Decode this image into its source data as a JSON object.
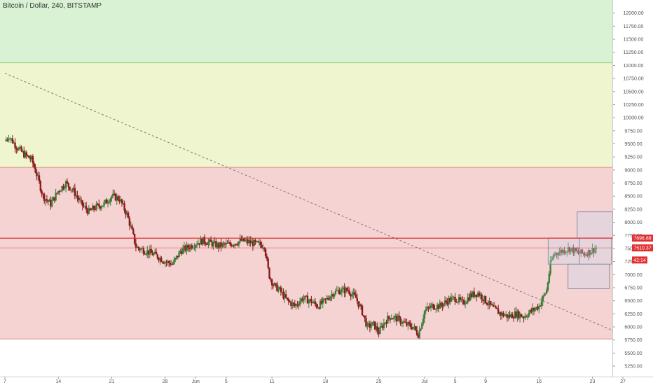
{
  "header": {
    "title": "Bitcoin / Dollar, 240, BITSTAMP"
  },
  "colors": {
    "zone_green": "#d8f2d3",
    "zone_yellow": "#eef5cf",
    "zone_red": "#f6d3d3",
    "zone_green_border": "#8cd47e",
    "zone_red_border": "#e08a8a",
    "candle_up": "#3a7d3a",
    "candle_down": "#8b1a1a",
    "resistance_line": "#e03030",
    "price_badge_red": "#e03030",
    "time_badge": "#e03030",
    "box_fill": "#c9d6ee",
    "trendline": "#777777"
  },
  "chart_data": {
    "type": "candlestick",
    "symbol": "Bitcoin / Dollar",
    "interval": "240",
    "exchange": "BITSTAMP",
    "ylim": [
      5050,
      12250
    ],
    "y_ticks": [
      5250,
      5500,
      5750,
      6000,
      6250,
      6500,
      6750,
      7000,
      7250,
      7500,
      7750,
      8000,
      8250,
      8500,
      8750,
      9000,
      9250,
      9500,
      9750,
      10000,
      10250,
      10500,
      10750,
      11000,
      11250,
      11500,
      11750,
      12000
    ],
    "y_tick_labels": [
      "5250.00",
      "5500.00",
      "5750.00",
      "6000.00",
      "6250.00",
      "6500.00",
      "6750.00",
      "7000.00",
      "7250.00",
      "7500.00",
      "7750.00",
      "8000.00",
      "8250.00",
      "8500.00",
      "8750.00",
      "9000.00",
      "9250.00",
      "9500.00",
      "9750.00",
      "10000.00",
      "10250.00",
      "10500.00",
      "10750.00",
      "11000.00",
      "11250.00",
      "11500.00",
      "11750.00",
      "12000.00"
    ],
    "x_ticks": [
      {
        "label": "7",
        "day": 0
      },
      {
        "label": "14",
        "day": 7
      },
      {
        "label": "21",
        "day": 14
      },
      {
        "label": "28",
        "day": 21
      },
      {
        "label": "Jun",
        "day": 25
      },
      {
        "label": "5",
        "day": 29
      },
      {
        "label": "11",
        "day": 35
      },
      {
        "label": "18",
        "day": 42
      },
      {
        "label": "25",
        "day": 49
      },
      {
        "label": "Jul",
        "day": 55
      },
      {
        "label": "5",
        "day": 59
      },
      {
        "label": "9",
        "day": 63
      },
      {
        "label": "16",
        "day": 70
      },
      {
        "label": "23",
        "day": 77
      },
      {
        "label": "27",
        "day": 81
      }
    ],
    "xlim": [
      0,
      82
    ],
    "zones": [
      {
        "name": "green",
        "from": 11050,
        "to": 12250
      },
      {
        "name": "yellow",
        "from": 9050,
        "to": 11050
      },
      {
        "name": "red",
        "from": 5770,
        "to": 9050
      }
    ],
    "close_path": [
      [
        0,
        9550
      ],
      [
        0.5,
        9650
      ],
      [
        1.5,
        9450
      ],
      [
        2.5,
        9300
      ],
      [
        3.5,
        9200
      ],
      [
        4.2,
        8900
      ],
      [
        5.0,
        8500
      ],
      [
        6.0,
        8350
      ],
      [
        7.0,
        8600
      ],
      [
        8.0,
        8750
      ],
      [
        9.0,
        8600
      ],
      [
        10.0,
        8350
      ],
      [
        11.0,
        8200
      ],
      [
        12.0,
        8300
      ],
      [
        13.0,
        8350
      ],
      [
        14.0,
        8500
      ],
      [
        15.0,
        8450
      ],
      [
        16.0,
        8150
      ],
      [
        16.7,
        7800
      ],
      [
        17.2,
        7520
      ],
      [
        18.0,
        7480
      ],
      [
        19.0,
        7420
      ],
      [
        20.0,
        7350
      ],
      [
        21.0,
        7250
      ],
      [
        22.0,
        7200
      ],
      [
        23.0,
        7450
      ],
      [
        24.0,
        7520
      ],
      [
        25.0,
        7600
      ],
      [
        26.0,
        7650
      ],
      [
        27.0,
        7600
      ],
      [
        28.0,
        7550
      ],
      [
        29.0,
        7570
      ],
      [
        30.0,
        7600
      ],
      [
        31.0,
        7650
      ],
      [
        32.0,
        7620
      ],
      [
        33.0,
        7580
      ],
      [
        34.0,
        7560
      ],
      [
        34.6,
        7000
      ],
      [
        35.2,
        6800
      ],
      [
        36.0,
        6700
      ],
      [
        37.0,
        6500
      ],
      [
        38.0,
        6400
      ],
      [
        39.0,
        6550
      ],
      [
        40.0,
        6500
      ],
      [
        41.0,
        6400
      ],
      [
        42.0,
        6500
      ],
      [
        43.0,
        6650
      ],
      [
        44.0,
        6700
      ],
      [
        45.0,
        6700
      ],
      [
        46.0,
        6550
      ],
      [
        46.8,
        6300
      ],
      [
        47.5,
        6000
      ],
      [
        48.3,
        6050
      ],
      [
        49.0,
        5900
      ],
      [
        49.8,
        6100
      ],
      [
        50.5,
        6200
      ],
      [
        51.5,
        6150
      ],
      [
        52.5,
        6050
      ],
      [
        53.5,
        6000
      ],
      [
        54.2,
        5850
      ],
      [
        55.0,
        6300
      ],
      [
        56.0,
        6400
      ],
      [
        57.0,
        6400
      ],
      [
        58.0,
        6500
      ],
      [
        59.0,
        6550
      ],
      [
        60.0,
        6450
      ],
      [
        61.0,
        6600
      ],
      [
        62.0,
        6650
      ],
      [
        63.0,
        6500
      ],
      [
        64.0,
        6350
      ],
      [
        65.0,
        6250
      ],
      [
        66.0,
        6200
      ],
      [
        67.0,
        6250
      ],
      [
        68.0,
        6200
      ],
      [
        69.0,
        6300
      ],
      [
        70.0,
        6400
      ],
      [
        71.0,
        6700
      ],
      [
        71.5,
        7200
      ],
      [
        72.0,
        7400
      ],
      [
        73.0,
        7450
      ],
      [
        74.0,
        7500
      ],
      [
        75.0,
        7420
      ],
      [
        76.0,
        7400
      ],
      [
        76.8,
        7450
      ],
      [
        77.5,
        7510
      ]
    ],
    "resistance_line": 7696.88,
    "last_price_line": 7510.37,
    "price_labels": [
      {
        "text": "7696.88",
        "value": 7696.88
      },
      {
        "text": "7510.37",
        "value": 7510.37
      }
    ],
    "countdown_label": {
      "text": "42:14",
      "value": 7400
    },
    "trendline": {
      "from": [
        0,
        10850
      ],
      "to": [
        81.8,
        5800
      ]
    },
    "boxes": [
      {
        "x0": 75.0,
        "x1": 79.7,
        "y0": 7700,
        "y1": 8200
      },
      {
        "x0": 71.2,
        "x1": 75.3,
        "y0": 7200,
        "y1": 7700
      },
      {
        "x0": 75.3,
        "x1": 79.5,
        "y0": 7200,
        "y1": 7700
      },
      {
        "x0": 73.8,
        "x1": 79.2,
        "y0": 6730,
        "y1": 7200
      }
    ]
  }
}
